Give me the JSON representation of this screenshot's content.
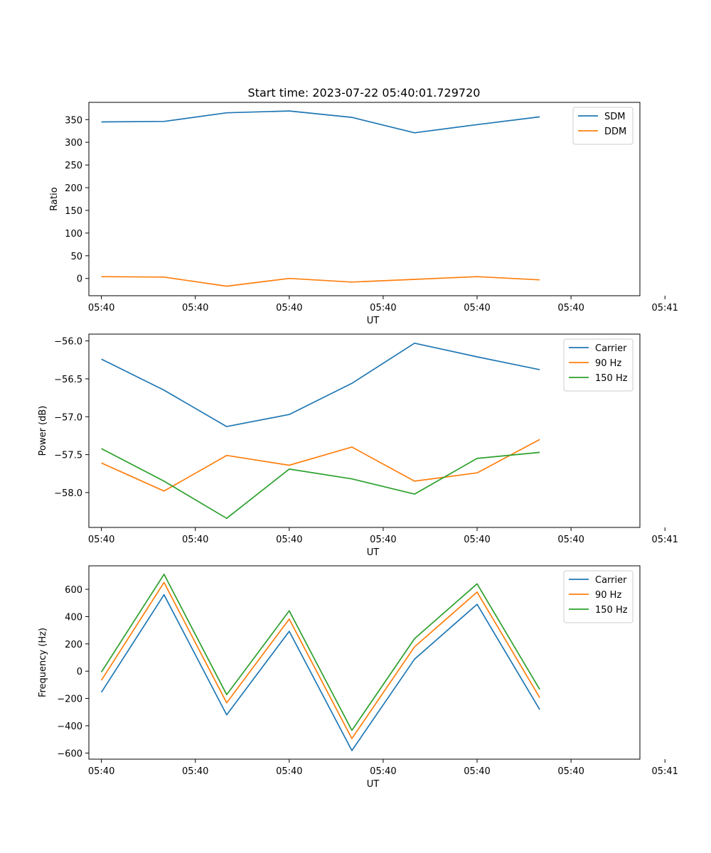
{
  "figure_title": "Start time: 2023-07-22 05:40:01.729720",
  "colors": {
    "blue": "#1f77b4",
    "orange": "#ff7f0e",
    "green": "#2ca02c"
  },
  "chart_data": [
    {
      "type": "line",
      "title": "Start time: 2023-07-22 05:40:01.729720",
      "xlabel": "UT",
      "ylabel": "Ratio",
      "x": [
        1,
        2,
        3,
        4,
        5,
        6,
        7,
        8
      ],
      "xlim": [
        0.8,
        9.6
      ],
      "xticks": [
        1,
        2.5,
        4,
        5.5,
        7,
        8.5,
        10
      ],
      "xtick_labels": [
        "05:40",
        "05:40",
        "05:40",
        "05:40",
        "05:40",
        "05:40",
        "05:41"
      ],
      "ylim": [
        -38,
        388
      ],
      "yticks": [
        0,
        50,
        100,
        150,
        200,
        250,
        300,
        350
      ],
      "ytick_labels": [
        "0",
        "50",
        "100",
        "150",
        "200",
        "250",
        "300",
        "350"
      ],
      "legend_position": "top-right",
      "series": [
        {
          "name": "SDM",
          "color": "#1f77b4",
          "values": [
            345,
            346,
            365,
            369,
            355,
            321,
            339,
            356
          ]
        },
        {
          "name": "DDM",
          "color": "#ff7f0e",
          "values": [
            4,
            3,
            -17,
            0,
            -8,
            -2,
            4,
            -3
          ]
        }
      ]
    },
    {
      "type": "line",
      "xlabel": "UT",
      "ylabel": "Power (dB)",
      "x": [
        1,
        2,
        3,
        4,
        5,
        6,
        7,
        8
      ],
      "xlim": [
        0.8,
        9.6
      ],
      "xticks": [
        1,
        2.5,
        4,
        5.5,
        7,
        8.5,
        10
      ],
      "xtick_labels": [
        "05:40",
        "05:40",
        "05:40",
        "05:40",
        "05:40",
        "05:40",
        "05:41"
      ],
      "ylim": [
        -58.46,
        -55.91
      ],
      "yticks": [
        -58.0,
        -57.5,
        -57.0,
        -56.5,
        -56.0
      ],
      "ytick_labels": [
        "−58.0",
        "−57.5",
        "−57.0",
        "−56.5",
        "−56.0"
      ],
      "legend_position": "top-right",
      "series": [
        {
          "name": "Carrier",
          "color": "#1f77b4",
          "values": [
            -56.24,
            -56.65,
            -57.13,
            -56.97,
            -56.56,
            -56.03,
            -56.21,
            -56.38
          ]
        },
        {
          "name": "90 Hz",
          "color": "#ff7f0e",
          "values": [
            -57.61,
            -57.98,
            -57.51,
            -57.64,
            -57.4,
            -57.85,
            -57.74,
            -57.3
          ]
        },
        {
          "name": "150 Hz",
          "color": "#2ca02c",
          "values": [
            -57.42,
            -57.85,
            -58.34,
            -57.69,
            -57.82,
            -58.02,
            -57.55,
            -57.47
          ]
        }
      ]
    },
    {
      "type": "line",
      "xlabel": "UT",
      "ylabel": "Frequency (Hz)",
      "x": [
        1,
        2,
        3,
        4,
        5,
        6,
        7,
        8
      ],
      "xlim": [
        0.8,
        9.6
      ],
      "xticks": [
        1,
        2.5,
        4,
        5.5,
        7,
        8.5,
        10
      ],
      "xtick_labels": [
        "05:40",
        "05:40",
        "05:40",
        "05:40",
        "05:40",
        "05:40",
        "05:41"
      ],
      "ylim": [
        -645,
        772
      ],
      "yticks": [
        -600,
        -400,
        -200,
        0,
        200,
        400,
        600
      ],
      "ytick_labels": [
        "−600",
        "−400",
        "−200",
        "0",
        "200",
        "400",
        "600"
      ],
      "legend_position": "top-right",
      "series": [
        {
          "name": "Carrier",
          "color": "#1f77b4",
          "values": [
            -155,
            560,
            -320,
            292,
            -582,
            88,
            490,
            -282
          ]
        },
        {
          "name": "90 Hz",
          "color": "#ff7f0e",
          "values": [
            -67,
            650,
            -232,
            382,
            -494,
            178,
            580,
            -194
          ]
        },
        {
          "name": "150 Hz",
          "color": "#2ca02c",
          "values": [
            -7,
            710,
            -172,
            442,
            -434,
            238,
            640,
            -134
          ]
        }
      ]
    }
  ]
}
